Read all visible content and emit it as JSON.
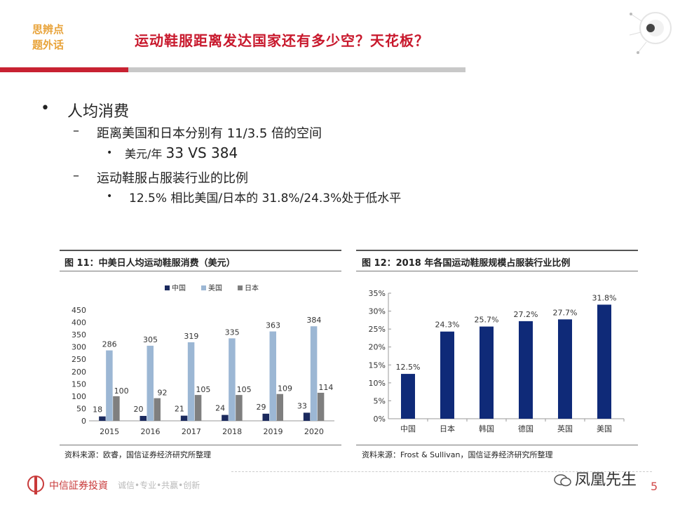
{
  "header": {
    "side_label_1": "思辨点",
    "side_label_2": "题外话",
    "title": "运动鞋服距离发达国家还有多少空？天花板？"
  },
  "bullets": {
    "l1": "人均消费",
    "l2a": "距离美国和日本分别有 11/3.5 倍的空间",
    "l3a_prefix": "美元/年 ",
    "l3a_value": "33 VS 384",
    "l2b": "运动鞋服占服装行业的比例",
    "l3b": "12.5% 相比美国/日本的 31.8%/24.3%处于低水平"
  },
  "figure11": {
    "title": "图 11：中美日人均运动鞋服消费（美元）",
    "source": "资料来源：欧睿，国信证券经济研究所整理"
  },
  "figure12": {
    "title": "图 12：2018 年各国运动鞋服规模占服装行业比例",
    "source": "资料来源：Frost & Sullivan，国信证券经济研究所整理"
  },
  "footer": {
    "company": "中信証券投資",
    "motto": "诚信•专业•共赢•创新",
    "wechat": "凤凰先生",
    "page": "5"
  },
  "chart_data": [
    {
      "type": "bar",
      "categories": [
        "2015",
        "2016",
        "2017",
        "2018",
        "2019",
        "2020"
      ],
      "series": [
        {
          "name": "中国",
          "values": [
            18,
            20,
            21,
            24,
            29,
            33
          ],
          "color": "#1b2a5e"
        },
        {
          "name": "美国",
          "values": [
            286,
            305,
            319,
            335,
            363,
            384
          ],
          "color": "#9cb7d4"
        },
        {
          "name": "日本",
          "values": [
            100,
            92,
            105,
            105,
            109,
            114
          ],
          "color": "#7f7f7f"
        }
      ],
      "ylim": [
        0,
        450
      ],
      "yticks": [
        "0",
        "50",
        "100",
        "150",
        "200",
        "250",
        "300",
        "350",
        "400",
        "450"
      ],
      "legend": "top",
      "grid": false
    },
    {
      "type": "bar",
      "categories": [
        "中国",
        "日本",
        "韩国",
        "德国",
        "英国",
        "美国"
      ],
      "values": [
        12.5,
        24.3,
        25.7,
        27.2,
        27.7,
        31.8
      ],
      "labels": [
        "12.5%",
        "24.3%",
        "25.7%",
        "27.2%",
        "27.7%",
        "31.8%"
      ],
      "color": "#0f2a78",
      "ylim": [
        0,
        35
      ],
      "yticks": [
        "0%",
        "5%",
        "10%",
        "15%",
        "20%",
        "25%",
        "30%",
        "35%"
      ],
      "grid": false
    }
  ]
}
